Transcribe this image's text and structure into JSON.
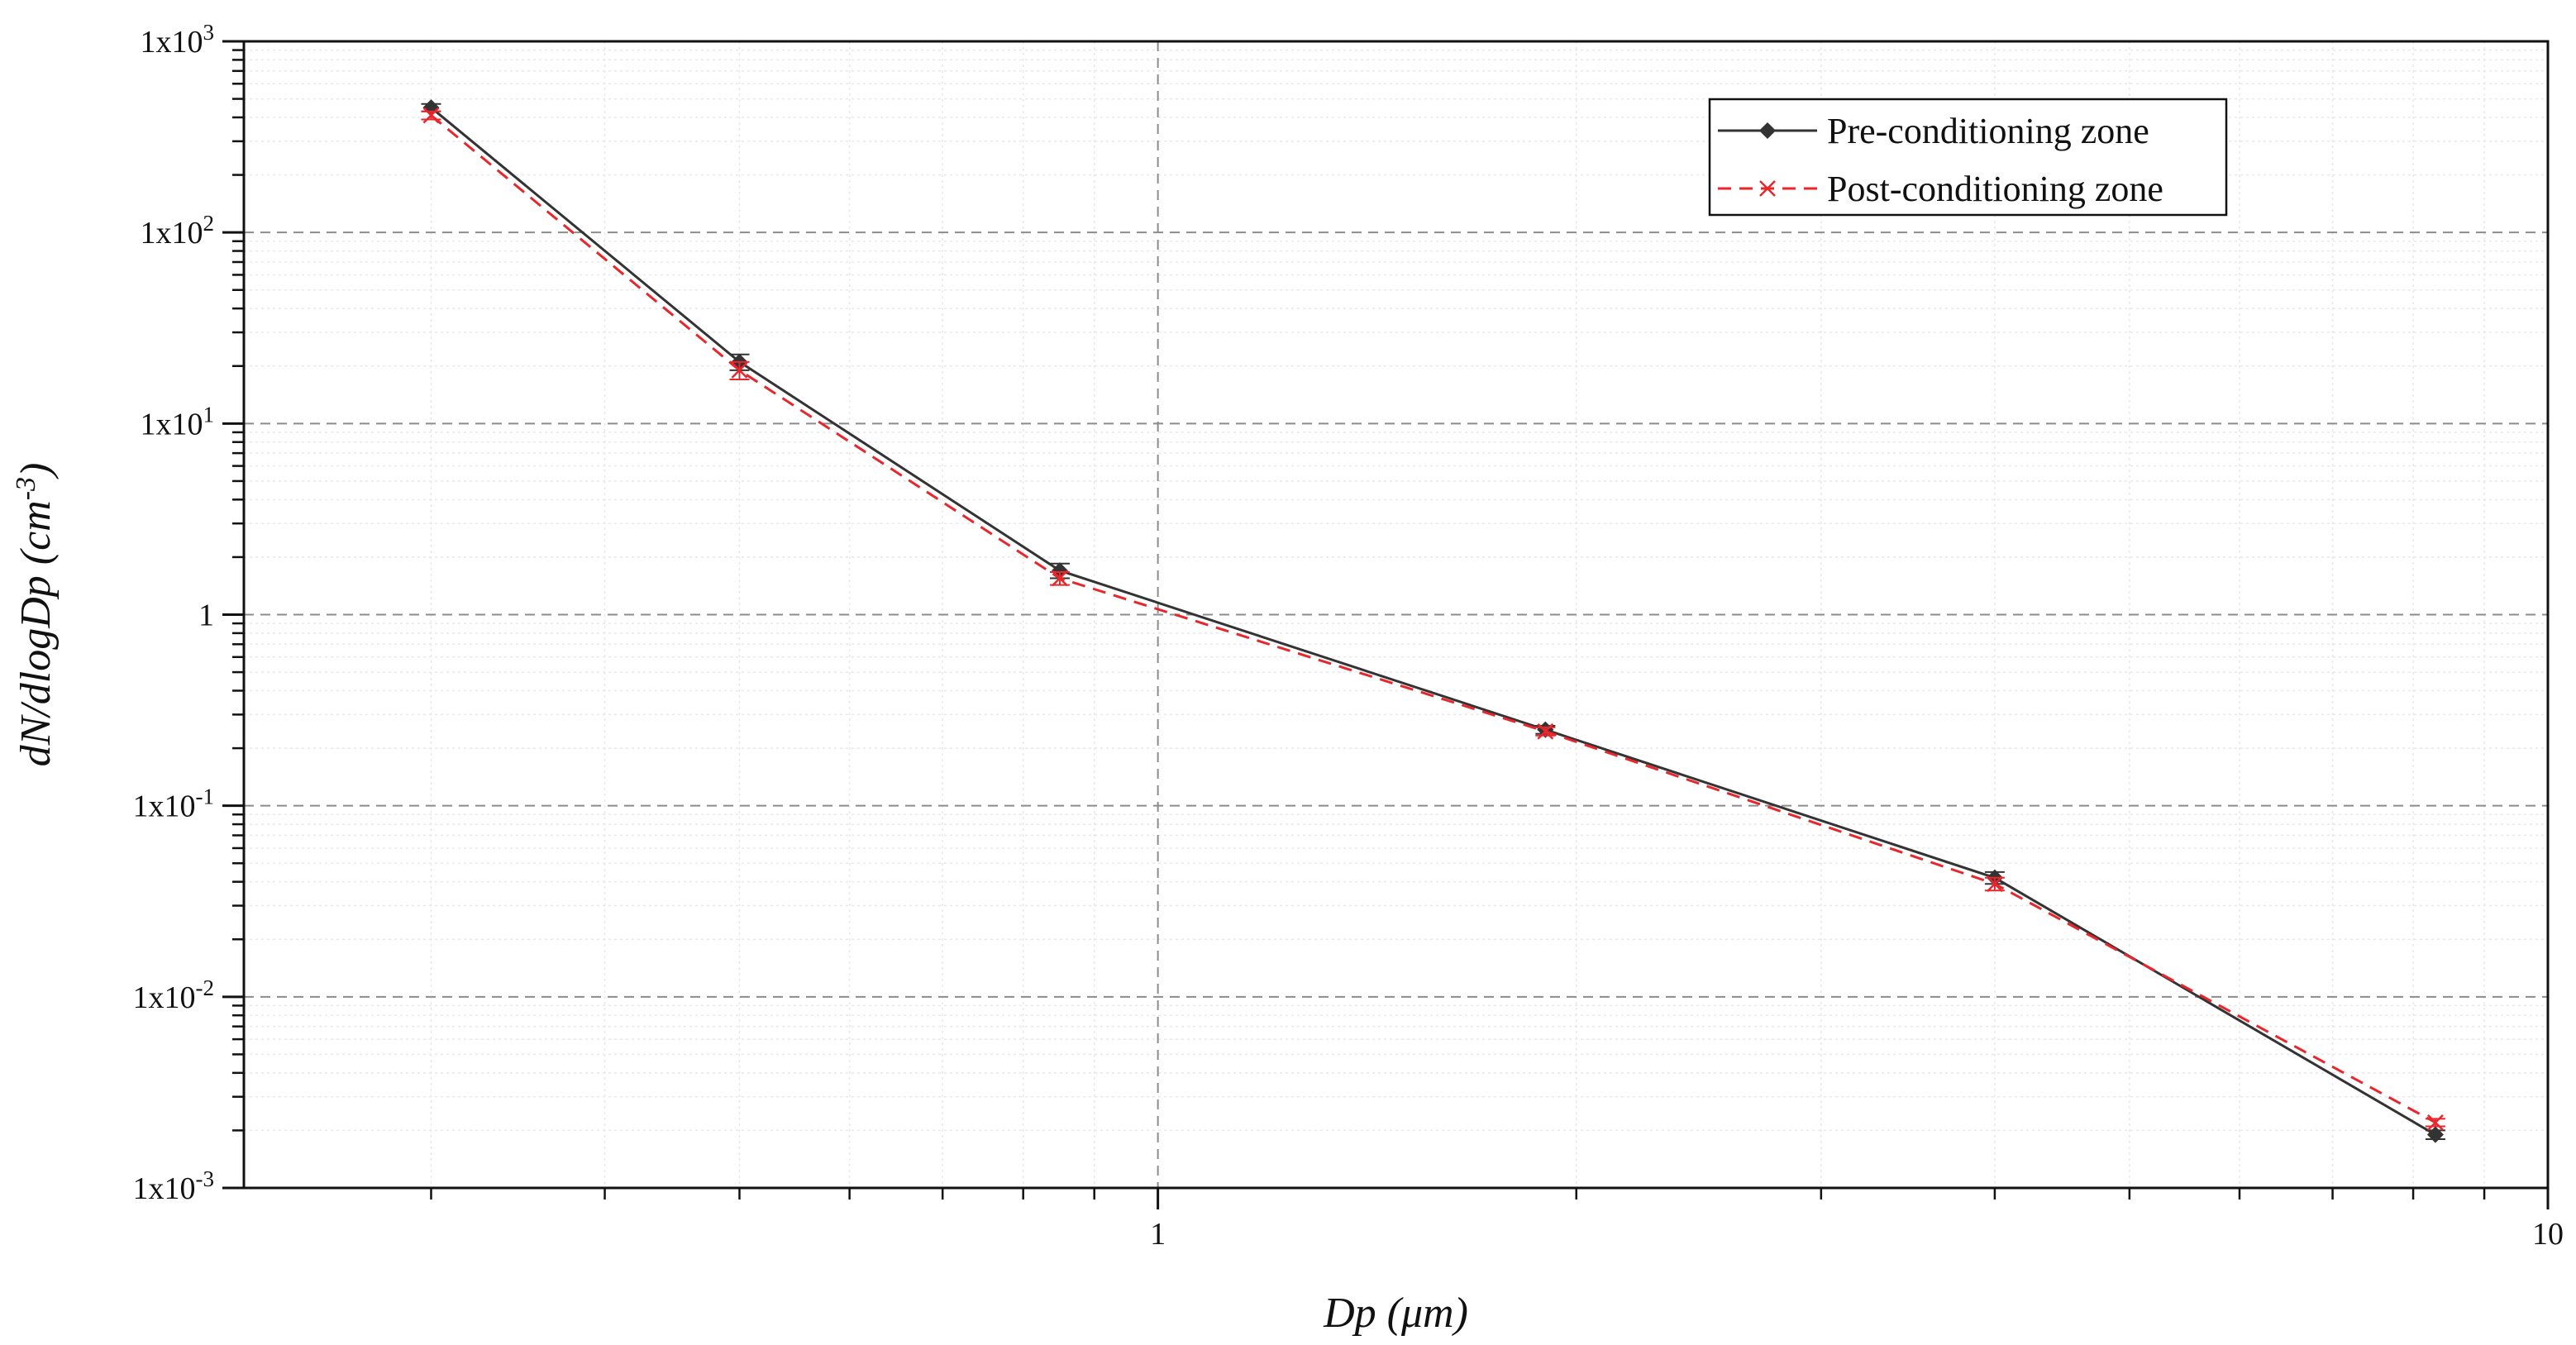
{
  "chart_data": {
    "type": "line",
    "title": "",
    "xlabel": {
      "var": "Dp",
      "unit": "(μm)"
    },
    "ylabel": {
      "var": "dN/dlogDp",
      "unit": "cm",
      "exp": "-3"
    },
    "x_scale": "log",
    "y_scale": "log",
    "xlim": [
      0.22,
      10
    ],
    "ylim": [
      0.001,
      1000
    ],
    "grid": true,
    "legend_position": "top-right",
    "x_ticks": [
      {
        "value": 1,
        "label": "1"
      },
      {
        "value": 10,
        "label": "10"
      }
    ],
    "y_ticks": [
      {
        "value": 0.001,
        "base": "1x10",
        "exp": "-3"
      },
      {
        "value": 0.01,
        "base": "1x10",
        "exp": "-2"
      },
      {
        "value": 0.1,
        "base": "1x10",
        "exp": "-1"
      },
      {
        "value": 1,
        "base": "1",
        "exp": ""
      },
      {
        "value": 10,
        "base": "1x10",
        "exp": "1"
      },
      {
        "value": 100,
        "base": "1x10",
        "exp": "2"
      },
      {
        "value": 1000,
        "base": "1x10",
        "exp": "3"
      }
    ],
    "series": [
      {
        "name": "Pre-conditioning zone",
        "color": "#333333",
        "line_style": "solid",
        "marker": "diamond",
        "x": [
          0.3,
          0.5,
          0.85,
          1.9,
          4.0,
          8.3
        ],
        "y": [
          450,
          21,
          1.7,
          0.25,
          0.042,
          0.0019
        ],
        "y_err": [
          20,
          2.0,
          0.15,
          0.012,
          0.003,
          0.0001
        ]
      },
      {
        "name": "Post-conditioning zone",
        "color": "#e8262b",
        "line_style": "dashed",
        "marker": "x",
        "x": [
          0.3,
          0.5,
          0.85,
          1.9,
          4.0,
          8.3
        ],
        "y": [
          410,
          19,
          1.55,
          0.245,
          0.039,
          0.0022
        ],
        "y_err": [
          20,
          2.0,
          0.12,
          0.012,
          0.003,
          0.0001
        ]
      }
    ]
  }
}
